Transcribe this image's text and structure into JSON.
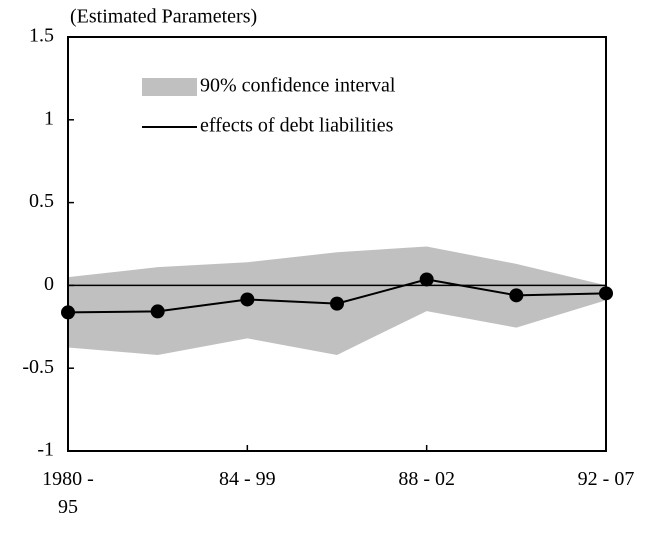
{
  "chart_data": {
    "type": "line",
    "y_label": "(Estimated Parameters)",
    "categories": [
      "1980 -\n95",
      null,
      "84 - 99",
      null,
      "88 - 02",
      null,
      "92 - 07"
    ],
    "series": [
      {
        "name": "90% confidence interval",
        "color": "#c0c0c0",
        "kind": "band",
        "upper": [
          0.05,
          0.11,
          0.14,
          0.2,
          0.235,
          0.13,
          0.0
        ],
        "lower": [
          -0.375,
          -0.42,
          -0.32,
          -0.42,
          -0.155,
          -0.255,
          -0.09
        ]
      },
      {
        "name": "effects of debt liabilities",
        "color": "#000000",
        "kind": "line",
        "values": [
          -0.163,
          -0.157,
          -0.085,
          -0.11,
          0.036,
          -0.06,
          -0.048
        ]
      }
    ],
    "ylim": [
      -1,
      1.5
    ],
    "yticks": [
      1.5,
      1,
      0.5,
      0,
      -0.5,
      -1
    ],
    "zero_line": true
  }
}
